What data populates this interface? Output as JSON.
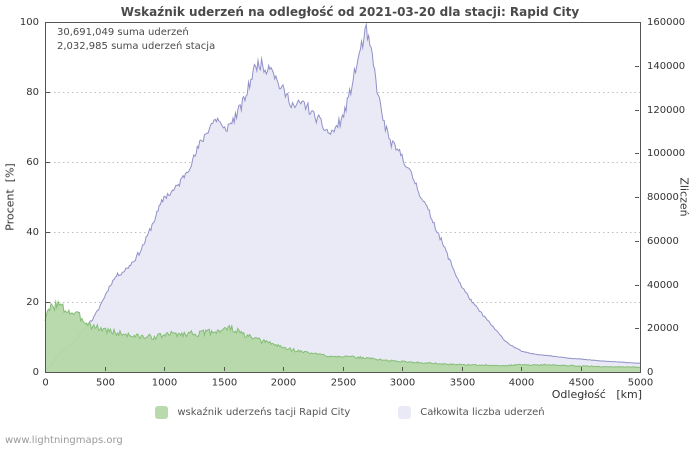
{
  "page": {
    "watermark": "www.lightningmaps.org"
  },
  "chart_data": {
    "type": "area",
    "title": "Wskaźnik uderzeń na odległość od 2021-03-20 dla stacji: Rapid City",
    "annotations": [
      "30,691,049 suma uderzeń",
      "2,032,985 suma uderzeń stacja"
    ],
    "xlabel": "Odległość   [km]",
    "ylabel_left": "Procent  [%]",
    "ylabel_right": "Zliczeń",
    "xlim": [
      0,
      5000
    ],
    "ylim_left": [
      0,
      100
    ],
    "ylim_right": [
      0,
      160000
    ],
    "x_ticks": [
      0,
      500,
      1000,
      1500,
      2000,
      2500,
      3000,
      3500,
      4000,
      4500,
      5000
    ],
    "y_left_ticks": [
      0,
      20,
      40,
      60,
      80,
      100
    ],
    "y_right_ticks": [
      0,
      20000,
      40000,
      60000,
      80000,
      100000,
      120000,
      140000,
      160000
    ],
    "grid": "horizontal-dotted",
    "legend_position": "bottom",
    "x": [
      0,
      50,
      100,
      150,
      200,
      250,
      300,
      350,
      400,
      450,
      500,
      550,
      600,
      650,
      700,
      750,
      800,
      850,
      900,
      950,
      1000,
      1050,
      1100,
      1150,
      1200,
      1250,
      1300,
      1350,
      1400,
      1450,
      1500,
      1550,
      1600,
      1650,
      1700,
      1750,
      1800,
      1850,
      1900,
      1950,
      2000,
      2050,
      2100,
      2150,
      2200,
      2250,
      2300,
      2350,
      2400,
      2450,
      2500,
      2550,
      2600,
      2650,
      2700,
      2750,
      2800,
      2850,
      2900,
      2950,
      3000,
      3050,
      3100,
      3150,
      3200,
      3250,
      3300,
      3350,
      3400,
      3450,
      3500,
      3550,
      3600,
      3650,
      3700,
      3750,
      3800,
      3850,
      3900,
      3950,
      4000,
      4050,
      4100,
      4150,
      4200,
      4250,
      4300,
      4350,
      4400,
      4450,
      4500,
      4550,
      4600,
      4650,
      4700,
      4750,
      4800,
      4850,
      4900,
      4950,
      5000
    ],
    "series": [
      {
        "name": "wskaźnik uderzeńs tacji Rapid City",
        "axis": "left",
        "unit": "%",
        "color_fill": "rgba(181,216,168,0.95)",
        "color_line": "#86bd78",
        "noise": 0.08,
        "noise_seed": 3,
        "values": [
          15.2,
          18.5,
          19.5,
          18.2,
          17.4,
          16.6,
          15.6,
          14.2,
          13.1,
          12.6,
          12.1,
          11.6,
          11.2,
          10.9,
          10.6,
          10.3,
          10.1,
          10.0,
          10.0,
          10.2,
          10.5,
          10.8,
          11.0,
          10.7,
          11.0,
          11.2,
          10.9,
          11.3,
          11.5,
          11.8,
          12.2,
          12.5,
          12.0,
          11.0,
          10.2,
          9.6,
          9.0,
          8.6,
          8.2,
          7.6,
          7.0,
          6.6,
          6.2,
          5.8,
          5.6,
          5.3,
          5.0,
          4.8,
          4.6,
          4.5,
          4.5,
          4.3,
          4.2,
          4.1,
          4.0,
          3.8,
          3.6,
          3.4,
          3.2,
          3.1,
          3.0,
          2.9,
          2.8,
          2.7,
          2.6,
          2.5,
          2.4,
          2.3,
          2.2,
          2.2,
          2.1,
          2.1,
          2.0,
          2.0,
          1.9,
          1.9,
          1.8,
          1.8,
          1.9,
          2.0,
          2.1,
          2.1,
          2.0,
          2.0,
          2.1,
          2.0,
          1.9,
          1.9,
          1.8,
          1.8,
          1.7,
          1.7,
          1.6,
          1.6,
          1.5,
          1.5,
          1.5,
          1.4,
          1.4,
          1.4,
          1.3
        ]
      },
      {
        "name": "Całkowita liczba uderzeń",
        "axis": "right",
        "unit": "zliczeń",
        "color_fill": "#eaeaf7",
        "color_line": "#9191c8",
        "noise": 0.02,
        "noise_seed": 11,
        "values": [
          0,
          3200,
          7200,
          9600,
          12000,
          14400,
          17600,
          21600,
          24000,
          28800,
          34400,
          40000,
          44000,
          45600,
          48000,
          51200,
          55200,
          60800,
          67200,
          73600,
          80000,
          81600,
          84000,
          88000,
          92800,
          97600,
          104000,
          108800,
          113600,
          116000,
          110400,
          112800,
          116800,
          121600,
          128000,
          137600,
          141600,
          138400,
          140800,
          132800,
          128800,
          124800,
          120800,
          123200,
          121600,
          117600,
          115200,
          111200,
          108800,
          112000,
          116000,
          124800,
          136000,
          147200,
          156000,
          144000,
          126400,
          113600,
          105600,
          101600,
          99200,
          92800,
          88000,
          81600,
          76000,
          70400,
          64000,
          57600,
          51200,
          44800,
          39200,
          35200,
          31200,
          28000,
          24800,
          21600,
          18400,
          15200,
          12800,
          11200,
          9600,
          8800,
          8320,
          8000,
          7680,
          7360,
          7040,
          6720,
          6400,
          6080,
          5920,
          5600,
          5440,
          5120,
          4960,
          4800,
          4640,
          4480,
          4320,
          4160,
          4000
        ]
      }
    ]
  }
}
